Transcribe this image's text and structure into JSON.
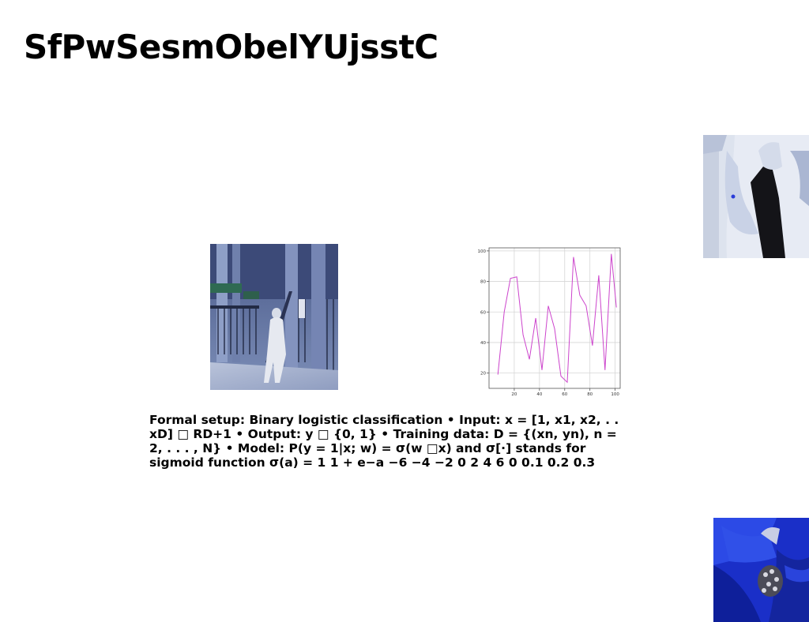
{
  "slide": {
    "title": "SfPwSesmObelYUjsstC",
    "body_text": "Formal setup: Binary logistic classification • Input: x = [1, x1, x2, . . xD] □ RD+1 • Output: y □ {0, 1} • Training data: D = {(xn, yn), n = 2, . . . , N} • Model: P(y = 1|x; w) = σ(w □x) and σ[·] stands for sigmoid function σ(a) = 1 1 + e−a −6 −4 −2 0 2 4 6 0 0.1 0.2 0.3"
  },
  "images": {
    "street_photo": "building-street-photo",
    "fashion_photo_top": "fashion-portrait-photo",
    "fashion_photo_bottom": "blue-fabric-photo"
  },
  "chart_data": {
    "type": "line",
    "x": [
      7,
      12,
      17,
      22,
      27,
      32,
      37,
      42,
      47,
      52,
      57,
      62,
      67,
      72,
      77,
      82,
      87,
      92,
      97,
      101
    ],
    "series": [
      {
        "values": [
          19,
          60,
          82,
          83,
          45,
          29,
          56,
          22,
          64,
          49,
          18,
          14,
          96,
          71,
          64,
          38,
          84,
          22,
          98,
          63
        ],
        "color": "#cc44cc"
      }
    ],
    "xlim": [
      0,
      104
    ],
    "ylim": [
      10,
      102
    ],
    "xticks": [
      20,
      40,
      60,
      80,
      100
    ],
    "yticks": [
      20,
      40,
      60,
      80,
      100
    ],
    "grid": true
  }
}
